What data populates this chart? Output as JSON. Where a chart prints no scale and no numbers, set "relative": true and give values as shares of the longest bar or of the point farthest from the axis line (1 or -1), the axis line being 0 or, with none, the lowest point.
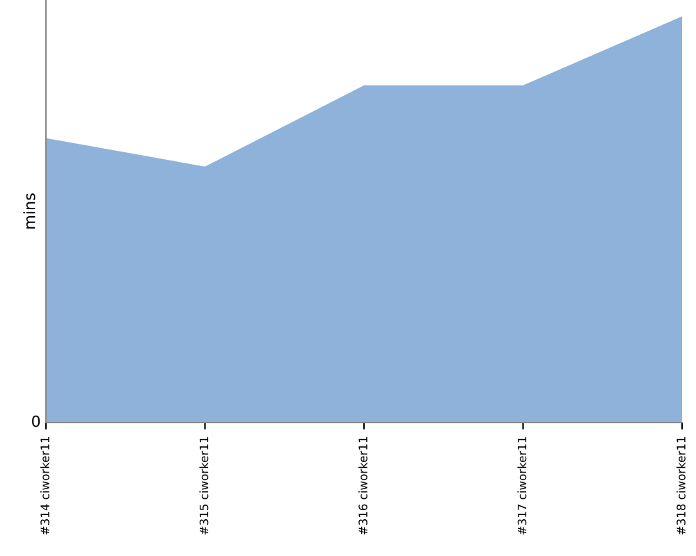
{
  "chart_data": {
    "type": "area",
    "ylabel": "mins",
    "relative": true,
    "categories": [
      "#314 ciworker11",
      "#315 ciworker11",
      "#316 ciworker11",
      "#317 ciworker11",
      "#318 ciworker11"
    ],
    "series": [
      {
        "color": "#8fb2da",
        "values": [
          0.7,
          0.63,
          0.83,
          0.83,
          1
        ]
      }
    ],
    "annotations": [
      "0"
    ],
    "grid": false,
    "legend": false
  }
}
